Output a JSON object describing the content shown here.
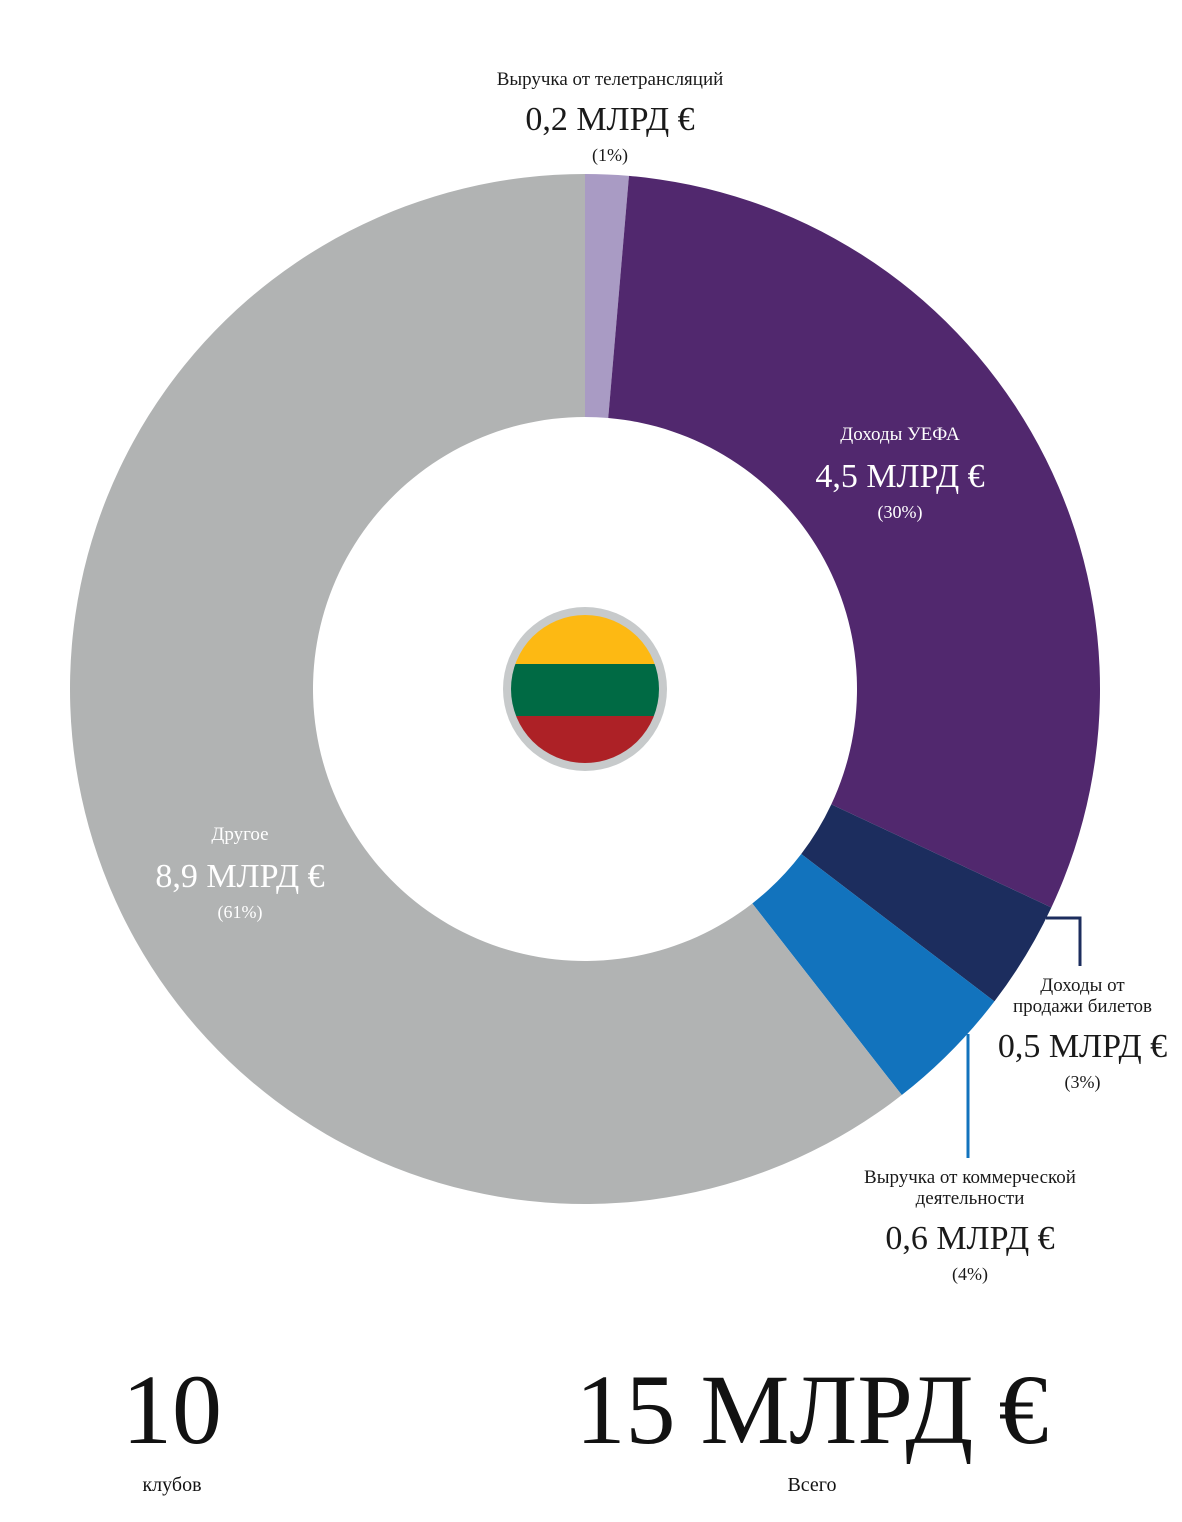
{
  "chart_data": {
    "type": "pie",
    "categories": [
      "Выручка от телетрансляций",
      "Доходы УЕФА",
      "Доходы от продажи билетов",
      "Выручка от коммерческой деятельности",
      "Другое"
    ],
    "series": [
      {
        "values": [
          0.2,
          4.5,
          0.5,
          0.6,
          8.9
        ]
      }
    ],
    "value_labels": [
      "0,2 МЛРД €",
      "4,5 МЛРД €",
      "0,5 МЛРД €",
      "0,6 МЛРД €",
      "8,9 МЛРД €"
    ],
    "percent_labels": [
      "(1%)",
      "(30%)",
      "(3%)",
      "(4%)",
      "(61%)"
    ],
    "colors": [
      "#a99bc4",
      "#51286e",
      "#1c2d5e",
      "#1273bd",
      "#b1b3b3"
    ],
    "flag_colors": [
      "#fdb913",
      "#006a44",
      "#ad2126"
    ]
  },
  "labels": {
    "tv": {
      "name": "Выручка от телетрансляций",
      "value": "0,2 МЛРД €",
      "pct": "(1%)"
    },
    "uefa": {
      "name": "Доходы УЕФА",
      "value": "4,5 МЛРД €",
      "pct": "(30%)"
    },
    "tickets": {
      "name1": "Доходы от",
      "name2": "продажи билетов",
      "value": "0,5 МЛРД €",
      "pct": "(3%)"
    },
    "commercial": {
      "name1": "Выручка от коммерческой",
      "name2": "деятельности",
      "value": "0,6 МЛРД €",
      "pct": "(4%)"
    },
    "other": {
      "name": "Другое",
      "value": "8,9 МЛРД €",
      "pct": "(61%)"
    }
  },
  "totals": {
    "clubs_value": "10",
    "clubs_label": "клубов",
    "revenue_value": "15 МЛРД €",
    "revenue_label": "Всего"
  }
}
